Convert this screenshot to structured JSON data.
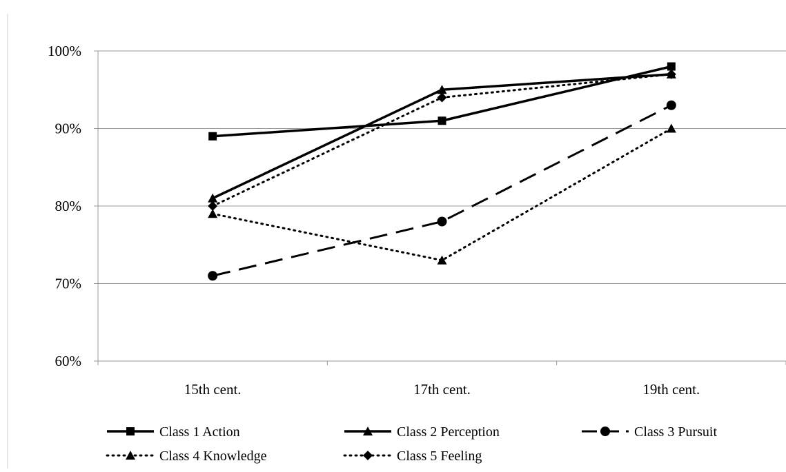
{
  "chart_data": {
    "type": "line",
    "categories": [
      "15th cent.",
      "17th cent.",
      "19th cent."
    ],
    "ylim": [
      60,
      100
    ],
    "yticks": [
      60,
      70,
      80,
      90,
      100
    ],
    "ytick_labels": [
      "60%",
      "70%",
      "80%",
      "90%",
      "100%"
    ],
    "grid": true,
    "legend": "bottom",
    "series": [
      {
        "name": "Class 1 Action",
        "values": [
          89,
          91,
          98
        ],
        "line": "solid",
        "marker": "square",
        "color": "#000000"
      },
      {
        "name": "Class 2 Perception",
        "values": [
          81,
          95,
          97
        ],
        "line": "solid",
        "marker": "triangle",
        "color": "#000000"
      },
      {
        "name": "Class 3 Pursuit",
        "values": [
          71,
          78,
          93
        ],
        "line": "dashed",
        "marker": "circle",
        "color": "#000000"
      },
      {
        "name": "Class 4 Knowledge",
        "values": [
          79,
          73,
          90
        ],
        "line": "dotted",
        "marker": "triangle",
        "color": "#000000"
      },
      {
        "name": "Class 5 Feeling",
        "values": [
          80,
          94,
          97
        ],
        "line": "dotted",
        "marker": "diamond",
        "color": "#000000"
      }
    ]
  }
}
